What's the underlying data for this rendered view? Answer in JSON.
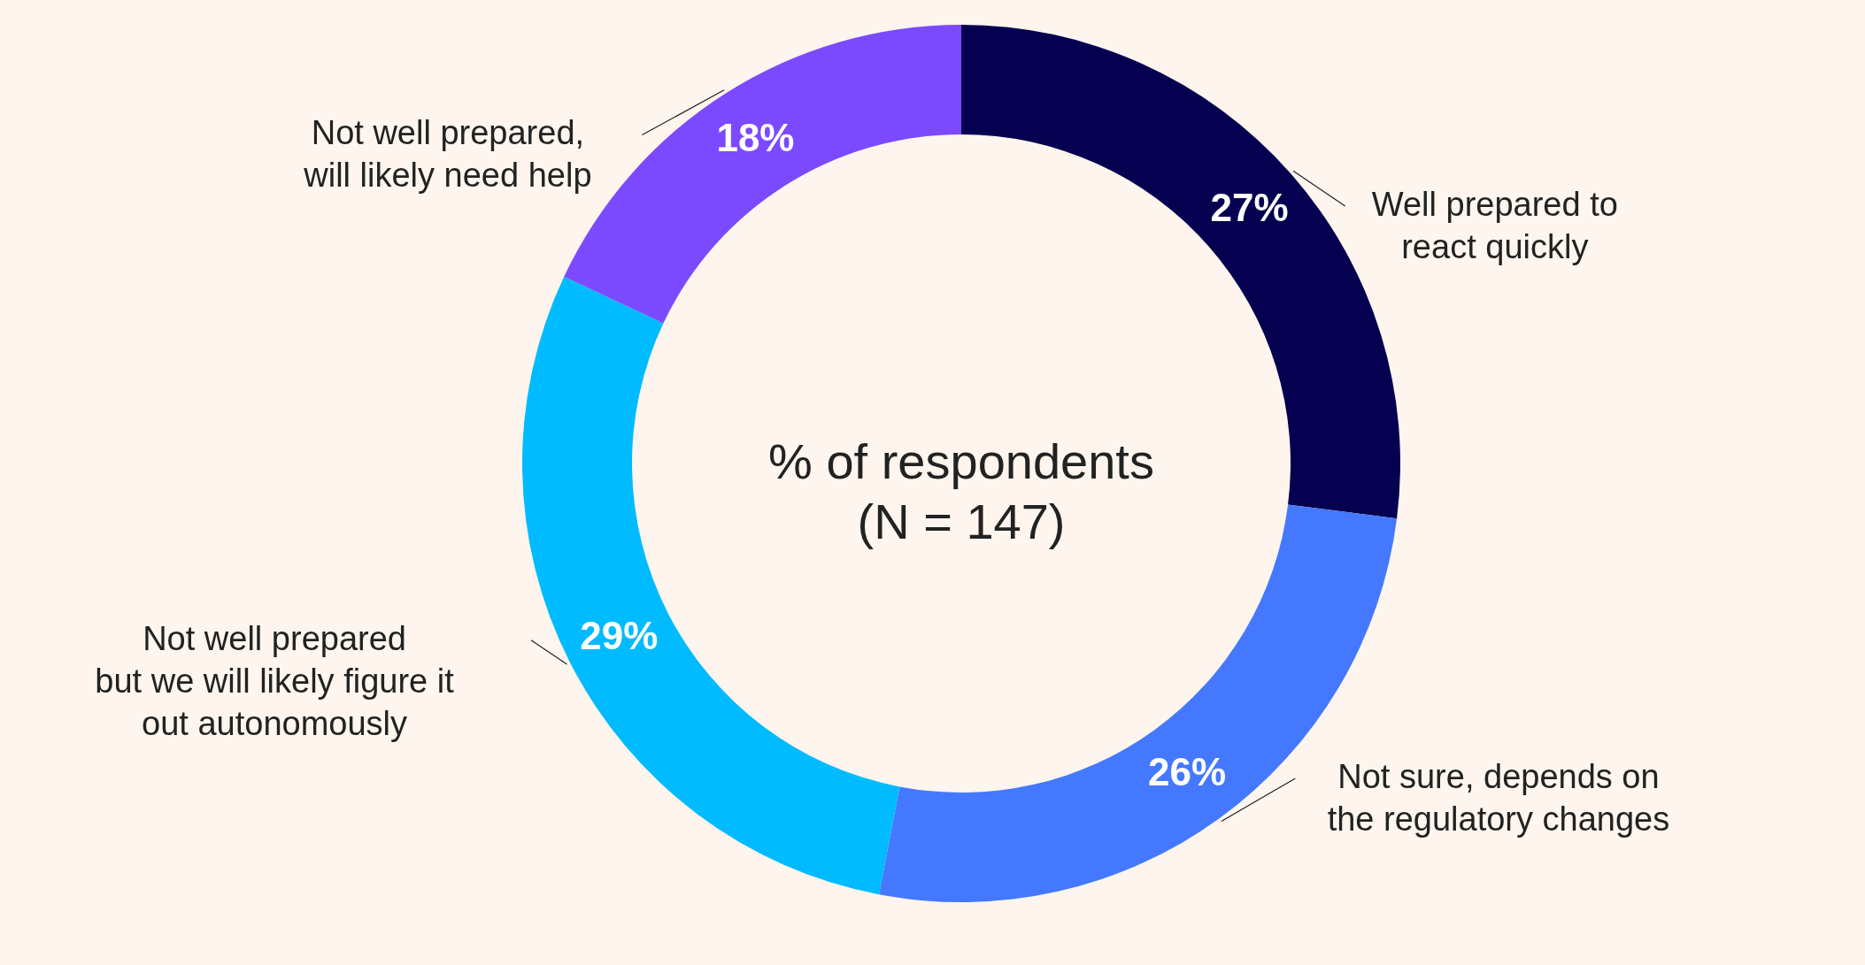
{
  "chart_data": {
    "type": "donut",
    "categories": [
      "Well prepared to\nreact quickly",
      "Not sure, depends on\nthe regulatory changes",
      "Not well prepared\nbut we will likely figure it\nout autonomously",
      "Not well prepared,\nwill likely need help"
    ],
    "values": [
      27,
      26,
      29,
      18
    ],
    "colors": [
      "#050050",
      "#4479ff",
      "#00bbff",
      "#7b4aff"
    ],
    "value_labels": [
      "27%",
      "26%",
      "29%",
      "18%"
    ],
    "annotations": [
      "% of respondents\n(N = 147)"
    ]
  }
}
